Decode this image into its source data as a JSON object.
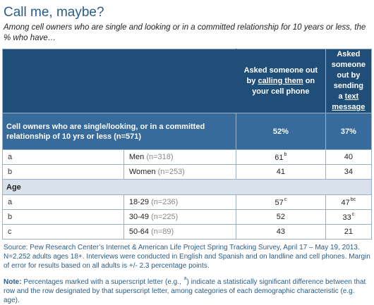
{
  "title": "Call me, maybe?",
  "subtitle": "Among cell owners who are single and looking or in a committed relationship for 10 years or less, the % who have…",
  "chart_data": {
    "type": "table",
    "columns": [
      {
        "pre": "Asked someone out by ",
        "link": "calling them",
        "post": " on your cell phone"
      },
      {
        "pre": "Asked someone out by sending a ",
        "link": "text message",
        "post": ""
      }
    ],
    "total": {
      "label": "Cell owners who are single/looking, or in a committed relationship of 10 yrs or less (n=571)",
      "values": [
        "52%",
        "37%"
      ]
    },
    "rows": [
      {
        "letter": "a",
        "name": "Men",
        "n": "(n=318)",
        "values": [
          "61",
          "40"
        ],
        "sup": [
          "b",
          ""
        ]
      },
      {
        "letter": "b",
        "name": "Women",
        "n": "(n=253)",
        "values": [
          "41",
          "34"
        ],
        "sup": [
          "",
          ""
        ]
      }
    ],
    "section_label": "Age",
    "age_rows": [
      {
        "letter": "a",
        "name": "18-29",
        "n": "(n=236)",
        "values": [
          "57",
          "47"
        ],
        "sup": [
          "c",
          "bc"
        ]
      },
      {
        "letter": "b",
        "name": "30-49",
        "n": "(n=225)",
        "values": [
          "52",
          "33"
        ],
        "sup": [
          "",
          "c"
        ]
      },
      {
        "letter": "c",
        "name": "50-64",
        "n": "(n=89)",
        "values": [
          "43",
          "21"
        ],
        "sup": [
          "",
          ""
        ]
      }
    ]
  },
  "source": "Source: Pew Research Center’s Internet & American Life Project Spring Tracking Survey, April 17 – May 19, 2013. N=2,252 adults ages 18+. Interviews were conducted in English and Spanish and on landline and cell phones.  Margin of error for results based on all adults is +/- 2.3 percentage points.",
  "note": {
    "label": "Note:",
    "pre": " Percentages marked with a superscript letter (e.g., ",
    "sup": "a",
    "post": ") indicate a statistically significant difference between that row and the row designated by that superscript letter, among categories of each demographic characteristic (e.g. age)."
  }
}
